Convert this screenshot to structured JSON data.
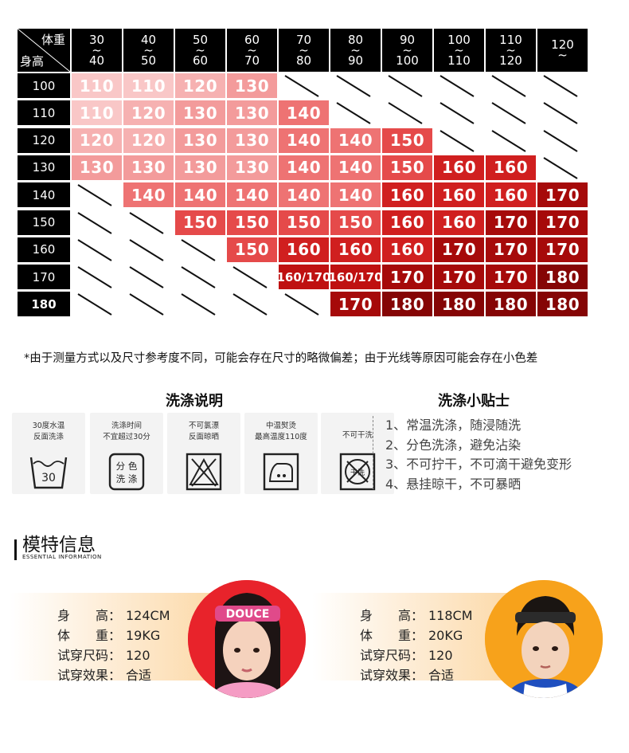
{
  "chart": {
    "corner_weight": "体重",
    "corner_height": "身高",
    "weight_columns": [
      [
        "30",
        "~",
        "40"
      ],
      [
        "40",
        "~",
        "50"
      ],
      [
        "50",
        "~",
        "60"
      ],
      [
        "60",
        "~",
        "70"
      ],
      [
        "70",
        "~",
        "80"
      ],
      [
        "80",
        "~",
        "90"
      ],
      [
        "90",
        "~",
        "100"
      ],
      [
        "100",
        "~",
        "110"
      ],
      [
        "110",
        "~",
        "120"
      ],
      [
        "120",
        "~",
        ""
      ]
    ],
    "rows": [
      {
        "height": "100",
        "cells": [
          "110",
          "110",
          "120",
          "130",
          "",
          "",
          "",
          "",
          "",
          ""
        ]
      },
      {
        "height": "110",
        "cells": [
          "110",
          "120",
          "130",
          "130",
          "140",
          "",
          "",
          "",
          "",
          ""
        ]
      },
      {
        "height": "120",
        "cells": [
          "120",
          "120",
          "130",
          "130",
          "140",
          "140",
          "150",
          "",
          "",
          ""
        ]
      },
      {
        "height": "130",
        "cells": [
          "130",
          "130",
          "130",
          "130",
          "140",
          "140",
          "150",
          "160",
          "160",
          ""
        ]
      },
      {
        "height": "140",
        "cells": [
          "",
          "140",
          "140",
          "140",
          "140",
          "140",
          "160",
          "160",
          "160",
          "170"
        ]
      },
      {
        "height": "150",
        "cells": [
          "",
          "",
          "150",
          "150",
          "150",
          "150",
          "160",
          "160",
          "170",
          "170"
        ]
      },
      {
        "height": "160",
        "cells": [
          "",
          "",
          "",
          "150",
          "160",
          "160",
          "160",
          "170",
          "170",
          "170"
        ]
      },
      {
        "height": "170",
        "cells": [
          "",
          "",
          "",
          "",
          "160/170",
          "160/170",
          "170",
          "170",
          "170",
          "180"
        ]
      },
      {
        "height": "180",
        "cells": [
          "",
          "",
          "",
          "",
          "",
          "170",
          "180",
          "180",
          "180",
          "180"
        ]
      }
    ],
    "size_colors": {
      "110": "#f9c7c7",
      "120": "#f6b1b1",
      "130": "#f39b9b",
      "140": "#ee7373",
      "150": "#e54a4a",
      "160": "#d01f1f",
      "160/170": "#bf1111",
      "170": "#a60a0a",
      "180": "#850505"
    }
  },
  "note": "*由于测量方式以及尺寸参考度不同，可能会存在尺寸的略微偏差；由于光线等原因可能会存在小色差",
  "washing": {
    "title": "洗涤说明",
    "cards": [
      {
        "line1": "30度水温",
        "line2": "反面洗涤",
        "icon": "wash-30-icon",
        "icon_text": "30"
      },
      {
        "line1": "洗涤时间",
        "line2": "不宜超过30分",
        "icon": "separate-wash-icon",
        "icon_text1": "分 色",
        "icon_text2": "洗 涤"
      },
      {
        "line1": "不可氯漂",
        "line2": "反面晾晒",
        "icon": "no-bleach-icon"
      },
      {
        "line1": "中温熨烫",
        "line2": "最高温度110度",
        "icon": "iron-medium-icon"
      },
      {
        "line1": "不可干洗",
        "line2": "",
        "icon": "no-dry-clean-icon",
        "icon_text": "干洗"
      }
    ]
  },
  "tips": {
    "title": "洗涤小贴士",
    "items": [
      "1、常温洗涤，随浸随洗",
      "2、分色洗涤，避免沾染",
      "3、不可拧干，不可滴干避免变形",
      "4、悬挂晾干，不可暴晒"
    ]
  },
  "model_info": {
    "title": "模特信息",
    "subtitle": "ESSENTIAL INFORMATION",
    "models": [
      {
        "height_label": "身　　高：",
        "height": "124CM",
        "weight_label": "体　　重：",
        "weight": "19KG",
        "size_label": "试穿尺码：",
        "size": "120",
        "effect_label": "试穿效果：",
        "effect": "合适",
        "headband_text": "DOUCE",
        "bg": "#e8232b"
      },
      {
        "height_label": "身　　高：",
        "height": "118CM",
        "weight_label": "体　　重：",
        "weight": "20KG",
        "size_label": "试穿尺码：",
        "size": "120",
        "effect_label": "试穿效果：",
        "effect": "合适",
        "bg": "#f7a21b"
      }
    ]
  }
}
